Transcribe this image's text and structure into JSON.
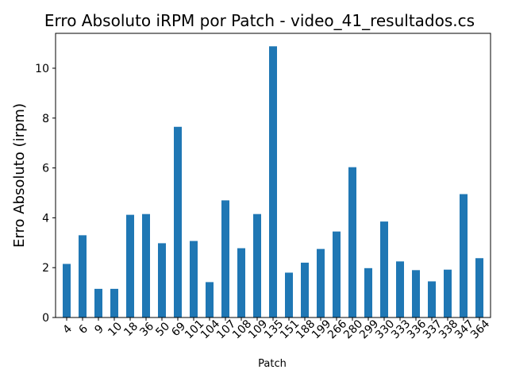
{
  "chart_data": {
    "type": "bar",
    "title": "Erro Absoluto iRPM por Patch - video_41_resultados.cs",
    "xlabel": "Patch",
    "ylabel": "Erro Absoluto (irpm)",
    "ylim": [
      0,
      11.4
    ],
    "yticks": [
      0,
      2,
      4,
      6,
      8,
      10
    ],
    "grid": false,
    "bar_color": "#1f77b4",
    "categories": [
      "4",
      "6",
      "9",
      "10",
      "18",
      "36",
      "50",
      "69",
      "101",
      "104",
      "107",
      "108",
      "109",
      "135",
      "151",
      "188",
      "199",
      "266",
      "280",
      "299",
      "330",
      "333",
      "336",
      "337",
      "338",
      "347",
      "364"
    ],
    "values": [
      2.15,
      3.3,
      1.15,
      1.15,
      4.12,
      4.15,
      2.98,
      7.65,
      3.07,
      1.42,
      4.7,
      2.78,
      4.15,
      10.88,
      1.8,
      2.2,
      2.75,
      3.45,
      6.03,
      1.98,
      3.85,
      2.25,
      1.9,
      1.45,
      1.92,
      4.95,
      2.38
    ]
  }
}
